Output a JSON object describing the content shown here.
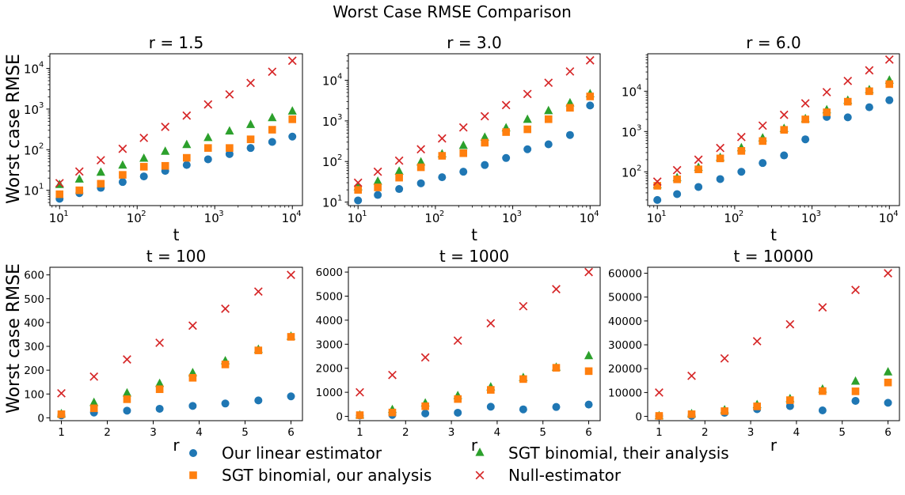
{
  "figure": {
    "title": "Worst Case RMSE Comparison",
    "ylabel": "Worst case RMSE"
  },
  "legend": {
    "placement": "bottom-center",
    "items": [
      {
        "label": "Our linear estimator",
        "marker": "circle",
        "color": "#1f77b4"
      },
      {
        "label": "SGT binomial, their analysis",
        "marker": "triangle",
        "color": "#2ca02c"
      },
      {
        "label": "SGT binomial, our analysis",
        "marker": "square",
        "color": "#ff7f0e"
      },
      {
        "label": "Null-estimator",
        "marker": "x",
        "color": "#d62728"
      }
    ]
  },
  "chart_data": [
    {
      "type": "scatter",
      "title": "r = 1.5",
      "xlabel": "t",
      "ylabel": "Worst case RMSE",
      "xscale": "log",
      "yscale": "log",
      "xlim": [
        7.5,
        13500
      ],
      "ylim": [
        4.2,
        23000
      ],
      "xticks": [
        10,
        100,
        1000,
        10000
      ],
      "yticks": [
        10,
        100,
        1000,
        10000
      ],
      "x": [
        10,
        18,
        34,
        65,
        122,
        230,
        435,
        820,
        1550,
        2900,
        5500,
        10000
      ],
      "series": [
        {
          "name": "Our linear estimator",
          "values": [
            6.2,
            8.5,
            11.5,
            16,
            22,
            30,
            42,
            58,
            78,
            110,
            155,
            210
          ]
        },
        {
          "name": "SGT binomial, their analysis",
          "values": [
            14,
            19,
            28,
            42,
            62,
            92,
            135,
            200,
            290,
            420,
            620,
            900
          ]
        },
        {
          "name": "SGT binomial, our analysis",
          "values": [
            8,
            10,
            14.5,
            24,
            38,
            40,
            63,
            110,
            110,
            180,
            310,
            560
          ]
        },
        {
          "name": "Null-estimator",
          "values": [
            15,
            29,
            55,
            105,
            195,
            365,
            690,
            1300,
            2300,
            4400,
            8300,
            15500
          ]
        }
      ]
    },
    {
      "type": "scatter",
      "title": "r = 3.0",
      "xlabel": "t",
      "ylabel": "",
      "xscale": "log",
      "yscale": "log",
      "xlim": [
        7.5,
        13500
      ],
      "ylim": [
        8.2,
        45000
      ],
      "xticks": [
        10,
        100,
        1000,
        10000
      ],
      "yticks": [
        10,
        100,
        1000,
        10000
      ],
      "x": [
        10,
        18,
        34,
        65,
        122,
        230,
        435,
        820,
        1550,
        2900,
        5500,
        10000
      ],
      "series": [
        {
          "name": "Our linear estimator",
          "values": [
            11,
            15,
            21,
            29,
            41,
            56,
            82,
            122,
            200,
            265,
            450,
            2400
          ]
        },
        {
          "name": "SGT binomial, their analysis",
          "values": [
            24,
            33,
            58,
            98,
            155,
            250,
            400,
            680,
            1100,
            1800,
            2800,
            4700
          ]
        },
        {
          "name": "SGT binomial, our analysis",
          "values": [
            20,
            23,
            40,
            72,
            138,
            160,
            290,
            530,
            620,
            1100,
            2100,
            4000
          ]
        },
        {
          "name": "Null-estimator",
          "values": [
            30,
            56,
            105,
            200,
            370,
            690,
            1300,
            2450,
            4600,
            8700,
            16500,
            31000
          ]
        }
      ]
    },
    {
      "type": "scatter",
      "title": "r = 6.0",
      "xlabel": "t",
      "ylabel": "",
      "xscale": "log",
      "yscale": "log",
      "xlim": [
        7.5,
        13500
      ],
      "ylim": [
        14.5,
        85000
      ],
      "xticks": [
        10,
        100,
        1000,
        10000
      ],
      "yticks": [
        100,
        1000,
        10000
      ],
      "x": [
        10,
        18,
        34,
        65,
        122,
        230,
        435,
        820,
        1550,
        2900,
        5500,
        10000
      ],
      "series": [
        {
          "name": "Our linear estimator",
          "values": [
            20,
            28,
            42,
            66,
            100,
            165,
            255,
            640,
            2300,
            2250,
            4000,
            6000
          ]
        },
        {
          "name": "SGT binomial, their analysis",
          "values": [
            48,
            72,
            130,
            230,
            400,
            700,
            1200,
            2100,
            3500,
            6000,
            11000,
            19000
          ]
        },
        {
          "name": "SGT binomial, our analysis",
          "values": [
            45,
            65,
            115,
            215,
            330,
            580,
            1100,
            2000,
            3000,
            5500,
            10000,
            15000
          ]
        },
        {
          "name": "Null-estimator",
          "values": [
            57,
            110,
            200,
            390,
            730,
            1400,
            2600,
            5000,
            9500,
            18000,
            33000,
            61000
          ]
        }
      ]
    },
    {
      "type": "scatter",
      "title": "t = 100",
      "xlabel": "r",
      "ylabel": "Worst case RMSE",
      "xscale": "linear",
      "yscale": "linear",
      "xlim": [
        0.75,
        6.25
      ],
      "ylim": [
        -12,
        632
      ],
      "xticks": [
        1,
        2,
        3,
        4,
        5,
        6
      ],
      "yticks": [
        0,
        100,
        200,
        300,
        400,
        500,
        600
      ],
      "x": [
        1.0,
        1.71,
        2.43,
        3.14,
        3.86,
        4.57,
        5.29,
        6.0
      ],
      "series": [
        {
          "name": "Our linear estimator",
          "values": [
            10,
            22,
            30,
            38,
            50,
            60,
            73,
            90
          ]
        },
        {
          "name": "SGT binomial, their analysis",
          "values": [
            18,
            65,
            105,
            145,
            190,
            240,
            288,
            343
          ]
        },
        {
          "name": "SGT binomial, our analysis",
          "values": [
            15,
            40,
            78,
            120,
            168,
            224,
            283,
            340
          ]
        },
        {
          "name": "Null-estimator",
          "values": [
            103,
            173,
            245,
            315,
            387,
            458,
            530,
            600
          ]
        }
      ]
    },
    {
      "type": "scatter",
      "title": "t = 1000",
      "xlabel": "r",
      "ylabel": "",
      "xscale": "linear",
      "yscale": "linear",
      "xlim": [
        0.75,
        6.25
      ],
      "ylim": [
        -180,
        6200
      ],
      "xticks": [
        1,
        2,
        3,
        4,
        5,
        6
      ],
      "yticks": [
        0,
        1000,
        2000,
        3000,
        4000,
        5000,
        6000
      ],
      "x": [
        1.0,
        1.71,
        2.43,
        3.14,
        3.86,
        4.57,
        5.29,
        6.0
      ],
      "series": [
        {
          "name": "Our linear estimator",
          "values": [
            30,
            60,
            120,
            150,
            400,
            290,
            390,
            490
          ]
        },
        {
          "name": "SGT binomial, their analysis",
          "values": [
            60,
            290,
            560,
            870,
            1230,
            1620,
            2050,
            2530
          ]
        },
        {
          "name": "SGT binomial, our analysis",
          "values": [
            50,
            160,
            420,
            720,
            1100,
            1550,
            2020,
            1880
          ]
        },
        {
          "name": "Null-estimator",
          "values": [
            1000,
            1720,
            2450,
            3150,
            3870,
            4580,
            5290,
            6000
          ]
        }
      ]
    },
    {
      "type": "scatter",
      "title": "t = 10000",
      "xlabel": "r",
      "ylabel": "",
      "xscale": "linear",
      "yscale": "linear",
      "xlim": [
        0.75,
        6.25
      ],
      "ylim": [
        -1800,
        62500
      ],
      "xticks": [
        1,
        2,
        3,
        4,
        5,
        6
      ],
      "yticks": [
        0,
        10000,
        20000,
        30000,
        40000,
        50000,
        60000
      ],
      "x": [
        1.0,
        1.71,
        2.43,
        3.14,
        3.86,
        4.57,
        5.29,
        6.0
      ],
      "series": [
        {
          "name": "Our linear estimator",
          "values": [
            100,
            250,
            1500,
            3000,
            4300,
            2500,
            6500,
            5700
          ]
        },
        {
          "name": "SGT binomial, their analysis",
          "values": [
            300,
            1200,
            2800,
            5000,
            7500,
            11500,
            14800,
            18700
          ]
        },
        {
          "name": "SGT binomial, our analysis",
          "values": [
            200,
            900,
            2200,
            4200,
            6800,
            10600,
            10500,
            14200
          ]
        },
        {
          "name": "Null-estimator",
          "values": [
            10000,
            17000,
            24300,
            31500,
            38600,
            45700,
            53000,
            60000
          ]
        }
      ]
    }
  ]
}
